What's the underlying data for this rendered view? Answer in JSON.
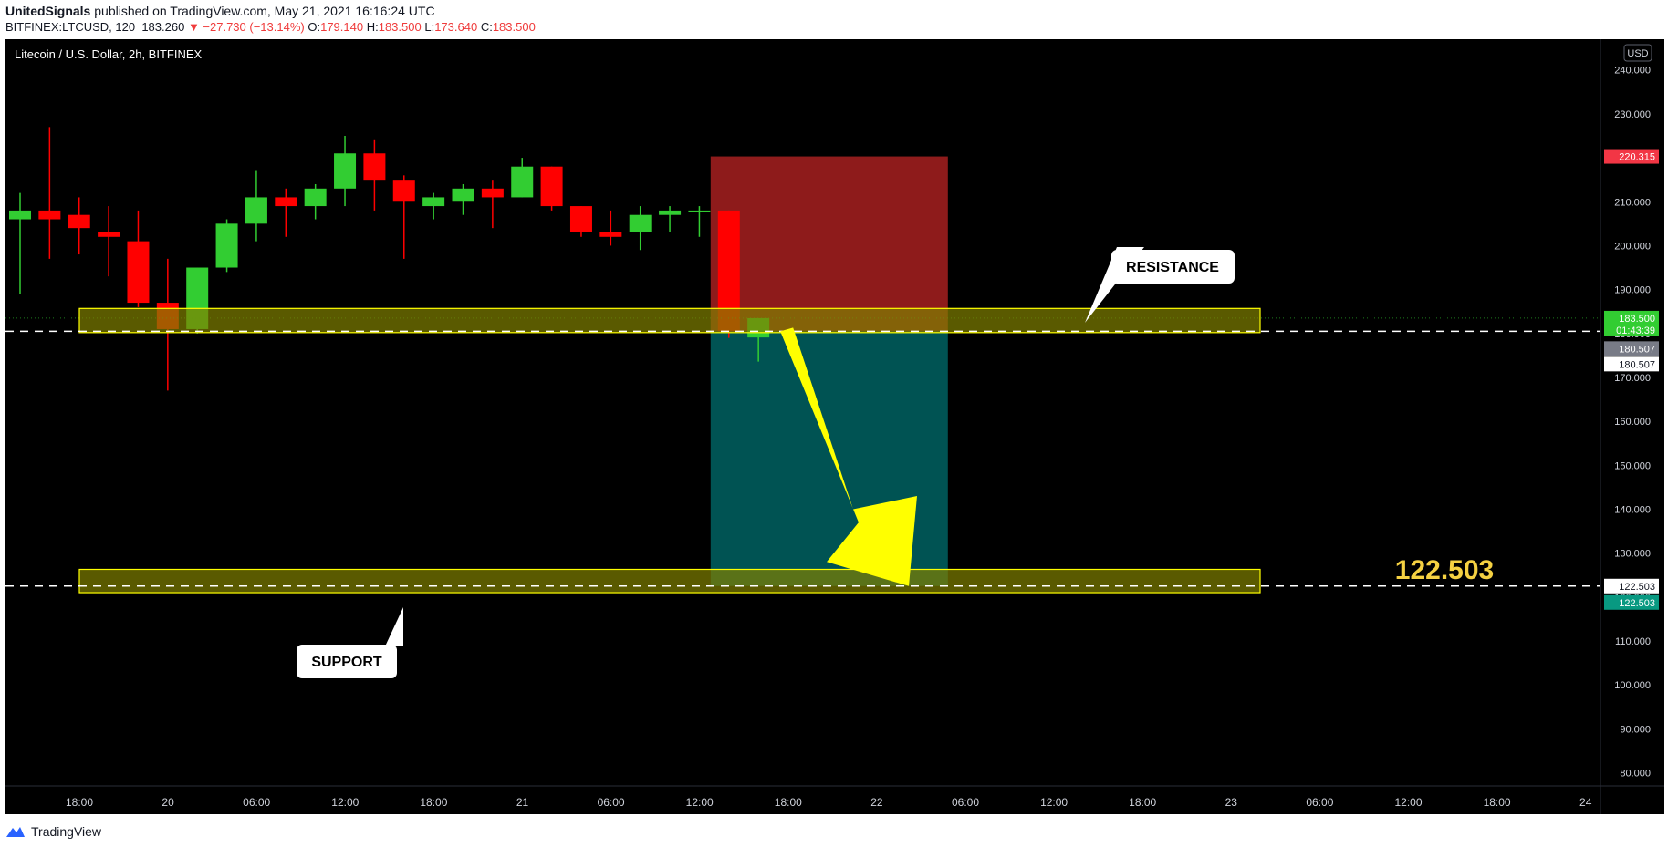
{
  "header": {
    "publisher": "UnitedSignals",
    "published_text": " published on TradingView.com, May 21, 2021 16:16:24 UTC",
    "symbol": "BITFINEX:LTCUSD, 120",
    "last": "183.260",
    "change": "▼ −27.730 (−13.14%)",
    "o_label": "O:",
    "o_value": "179.140",
    "h_label": "H:",
    "h_value": "183.500",
    "l_label": "L:",
    "l_value": "173.640",
    "c_label": "C:",
    "c_value": "183.500"
  },
  "chart_title": "Litecoin / U.S. Dollar, 2h, BITFINEX",
  "currency_badge": "USD",
  "footer_brand": "TradingView",
  "colors": {
    "up": "#32cd32",
    "down": "#ff0000",
    "zone": "#808000",
    "zone_border": "#ffff00",
    "stop": "#b22222",
    "target": "#008080",
    "arrow": "#ffff00",
    "highlight_text": "#f5d142"
  },
  "chart_data": {
    "type": "candlestick",
    "ylim": [
      77,
      247
    ],
    "y_ticks": [
      "80.000",
      "90.000",
      "100.000",
      "110.000",
      "120.000",
      "130.000",
      "140.000",
      "150.000",
      "160.000",
      "170.000",
      "180.000",
      "190.000",
      "200.000",
      "210.000",
      "220.000",
      "230.000",
      "240.000"
    ],
    "x_ticks": [
      "18:00",
      "20",
      "06:00",
      "12:00",
      "18:00",
      "21",
      "06:00",
      "12:00",
      "18:00",
      "22",
      "06:00",
      "12:00",
      "18:00",
      "23",
      "06:00",
      "12:00",
      "18:00",
      "24"
    ],
    "candles": [
      {
        "o": 206.0,
        "h": 212.0,
        "l": 189.0,
        "c": 208.0
      },
      {
        "o": 208.0,
        "h": 227.0,
        "l": 197.0,
        "c": 206.0
      },
      {
        "o": 207.0,
        "h": 211.0,
        "l": 198.0,
        "c": 204.0
      },
      {
        "o": 203.0,
        "h": 209.0,
        "l": 193.0,
        "c": 202.0
      },
      {
        "o": 201.0,
        "h": 208.0,
        "l": 186.0,
        "c": 187.0
      },
      {
        "o": 187.0,
        "h": 197.0,
        "l": 167.0,
        "c": 181.0
      },
      {
        "o": 181.0,
        "h": 195.0,
        "l": 180.0,
        "c": 195.0
      },
      {
        "o": 195.0,
        "h": 206.0,
        "l": 194.0,
        "c": 205.0
      },
      {
        "o": 205.0,
        "h": 217.0,
        "l": 201.0,
        "c": 211.0
      },
      {
        "o": 211.0,
        "h": 213.0,
        "l": 202.0,
        "c": 209.0
      },
      {
        "o": 209.0,
        "h": 214.0,
        "l": 206.0,
        "c": 213.0
      },
      {
        "o": 213.0,
        "h": 225.0,
        "l": 209.0,
        "c": 221.0
      },
      {
        "o": 221.0,
        "h": 224.0,
        "l": 208.0,
        "c": 215.0
      },
      {
        "o": 215.0,
        "h": 216.0,
        "l": 197.0,
        "c": 210.0
      },
      {
        "o": 209.0,
        "h": 212.0,
        "l": 206.0,
        "c": 211.0
      },
      {
        "o": 210.0,
        "h": 214.0,
        "l": 207.0,
        "c": 213.0
      },
      {
        "o": 213.0,
        "h": 215.0,
        "l": 204.0,
        "c": 211.0
      },
      {
        "o": 211.0,
        "h": 220.0,
        "l": 211.0,
        "c": 218.0
      },
      {
        "o": 218.0,
        "h": 218.0,
        "l": 208.0,
        "c": 209.0
      },
      {
        "o": 209.0,
        "h": 209.0,
        "l": 202.0,
        "c": 203.0
      },
      {
        "o": 203.0,
        "h": 208.0,
        "l": 200.0,
        "c": 202.0
      },
      {
        "o": 203.0,
        "h": 209.0,
        "l": 199.0,
        "c": 207.0
      },
      {
        "o": 207.0,
        "h": 209.0,
        "l": 203.0,
        "c": 208.0
      },
      {
        "o": 208.0,
        "h": 209.0,
        "l": 202.0,
        "c": 208.0
      },
      {
        "o": 208.0,
        "h": 208.0,
        "l": 179.0,
        "c": 180.5
      },
      {
        "o": 179.1,
        "h": 183.5,
        "l": 173.6,
        "c": 183.5
      }
    ],
    "resistance_zone": [
      180.2,
      185.7
    ],
    "support_zone": [
      121.0,
      126.3
    ],
    "entry": 180.507,
    "stop_loss": 220.315,
    "target": 122.503,
    "current_price": 183.5,
    "countdown": "01:43:39",
    "price_labels": {
      "stop": "220.315",
      "current": "183.500",
      "entry_a": "180.507",
      "entry_b": "180.507",
      "target_a": "122.503",
      "target_b": "122.503"
    },
    "annotations": {
      "resistance": "RESISTANCE",
      "support": "SUPPORT",
      "target_big": "122.503"
    }
  }
}
